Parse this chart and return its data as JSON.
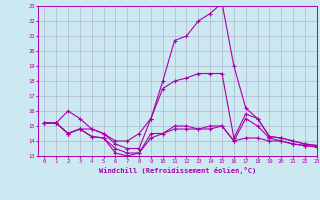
{
  "background_color": "#cce8f0",
  "grid_color": "#aaaacc",
  "line_color": "#aa00aa",
  "marker": "+",
  "xlabel": "Windchill (Refroidissement éolien,°C)",
  "xlabel_color": "#aa00aa",
  "ylim": [
    13,
    23
  ],
  "xlim": [
    -0.5,
    23
  ],
  "yticks": [
    13,
    14,
    15,
    16,
    17,
    18,
    19,
    20,
    21,
    22,
    23
  ],
  "xticks": [
    0,
    1,
    2,
    3,
    4,
    5,
    6,
    7,
    8,
    9,
    10,
    11,
    12,
    13,
    14,
    15,
    16,
    17,
    18,
    19,
    20,
    21,
    22,
    23
  ],
  "curves": [
    [
      15.2,
      15.2,
      14.5,
      14.8,
      14.3,
      14.2,
      13.2,
      13.0,
      13.2,
      14.5,
      14.5,
      15.0,
      15.0,
      14.8,
      15.0,
      15.0,
      14.0,
      15.5,
      15.0,
      14.2,
      14.0,
      13.8,
      13.7,
      13.6
    ],
    [
      15.2,
      15.2,
      14.5,
      14.8,
      14.8,
      14.5,
      13.8,
      13.5,
      13.5,
      15.5,
      18.0,
      20.7,
      21.0,
      22.0,
      22.5,
      23.2,
      19.0,
      16.2,
      15.5,
      14.3,
      14.2,
      14.0,
      13.8,
      13.7
    ],
    [
      15.2,
      15.2,
      14.5,
      14.8,
      14.3,
      14.2,
      13.5,
      13.2,
      13.2,
      14.2,
      14.5,
      14.8,
      14.8,
      14.8,
      14.8,
      15.0,
      14.0,
      14.2,
      14.2,
      14.0,
      14.0,
      13.8,
      13.7,
      13.6
    ],
    [
      15.2,
      15.2,
      16.0,
      15.5,
      14.8,
      14.5,
      14.0,
      14.0,
      14.5,
      15.5,
      17.5,
      18.0,
      18.2,
      18.5,
      18.5,
      18.5,
      14.2,
      15.8,
      15.5,
      14.3,
      14.2,
      14.0,
      13.8,
      13.7
    ]
  ],
  "figsize": [
    3.2,
    2.0
  ],
  "dpi": 100
}
